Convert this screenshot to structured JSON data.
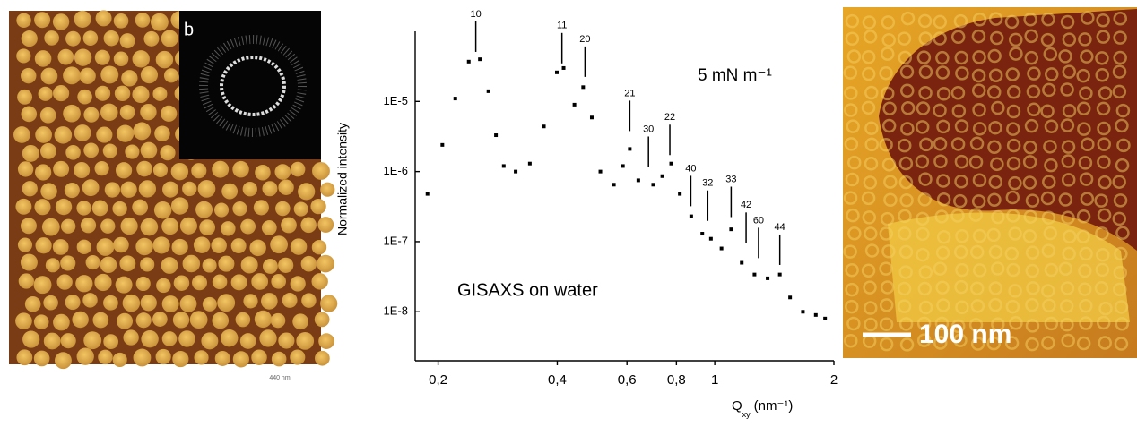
{
  "panels": {
    "left": {
      "label": "b",
      "scale": "440 nm"
    },
    "right": {
      "scale_bar": "100 nm"
    }
  },
  "chart_data": {
    "type": "scatter",
    "color": "#000000",
    "log_x": true,
    "log_y": true,
    "y_label": "Normalized intensity",
    "x_label": {
      "symbol": "Q",
      "subscript": "xy",
      "unit": "(nm⁻¹)"
    },
    "text_annotations": [
      "5 mN m⁻¹",
      "GISAXS on water"
    ],
    "xlim": [
      0.175,
      2
    ],
    "xticks": [
      {
        "value": 0.2,
        "label": "0,2"
      },
      {
        "value": 0.4,
        "label": "0,4"
      },
      {
        "value": 0.6,
        "label": "0,6"
      },
      {
        "value": 0.8,
        "label": "0,8"
      },
      1,
      2
    ],
    "ylim": [
      2e-09,
      0.0001
    ],
    "yticks": [
      {
        "value": 1e-05,
        "label": "1E-5"
      },
      {
        "value": 1e-06,
        "label": "1E-6"
      },
      {
        "value": 1e-07,
        "label": "1E-7"
      },
      {
        "value": 1e-08,
        "label": "1E-8"
      }
    ],
    "x": [
      0.188,
      0.205,
      0.221,
      0.239,
      0.255,
      0.268,
      0.28,
      0.293,
      0.314,
      0.341,
      0.37,
      0.399,
      0.415,
      0.442,
      0.465,
      0.489,
      0.514,
      0.556,
      0.586,
      0.61,
      0.641,
      0.699,
      0.737,
      0.776,
      0.816,
      0.872,
      0.93,
      0.978,
      1.04,
      1.1,
      1.17,
      1.26,
      1.36,
      1.46,
      1.55,
      1.67,
      1.8,
      1.9
    ],
    "values": [
      4.8e-07,
      2.4e-06,
      1.1e-05,
      3.7e-05,
      4e-05,
      1.4e-05,
      3.3e-06,
      1.2e-06,
      1e-06,
      1.3e-06,
      4.4e-06,
      2.6e-05,
      3e-05,
      9e-06,
      1.6e-05,
      5.9e-06,
      1e-06,
      6.5e-07,
      1.2e-06,
      2.1e-06,
      7.5e-07,
      6.5e-07,
      8.6e-07,
      1.3e-06,
      4.8e-07,
      2.3e-07,
      1.3e-07,
      1.1e-07,
      8e-08,
      1.5e-07,
      5e-08,
      3.4e-08,
      3e-08,
      3.4e-08,
      1.6e-08,
      1e-08,
      9e-09,
      8e-09
    ],
    "peaks": [
      {
        "text": "10",
        "x": 0.249,
        "y": 0.000175
      },
      {
        "text": "11",
        "x": 0.411,
        "y": 0.00012
      },
      {
        "text": "20",
        "x": 0.47,
        "y": 7.7e-05
      },
      {
        "text": "21",
        "x": 0.61,
        "y": 1.3e-05
      },
      {
        "text": "30",
        "x": 0.68,
        "y": 4e-06
      },
      {
        "text": "22",
        "x": 0.77,
        "y": 5.9e-06
      },
      {
        "text": "40",
        "x": 0.87,
        "y": 1.1e-06
      },
      {
        "text": "32",
        "x": 0.96,
        "y": 6.8e-07
      },
      {
        "text": "33",
        "x": 1.1,
        "y": 7.7e-07
      },
      {
        "text": "42",
        "x": 1.2,
        "y": 3.3e-07
      },
      {
        "text": "60",
        "x": 1.29,
        "y": 2e-07
      },
      {
        "text": "44",
        "x": 1.46,
        "y": 1.6e-07
      }
    ]
  }
}
